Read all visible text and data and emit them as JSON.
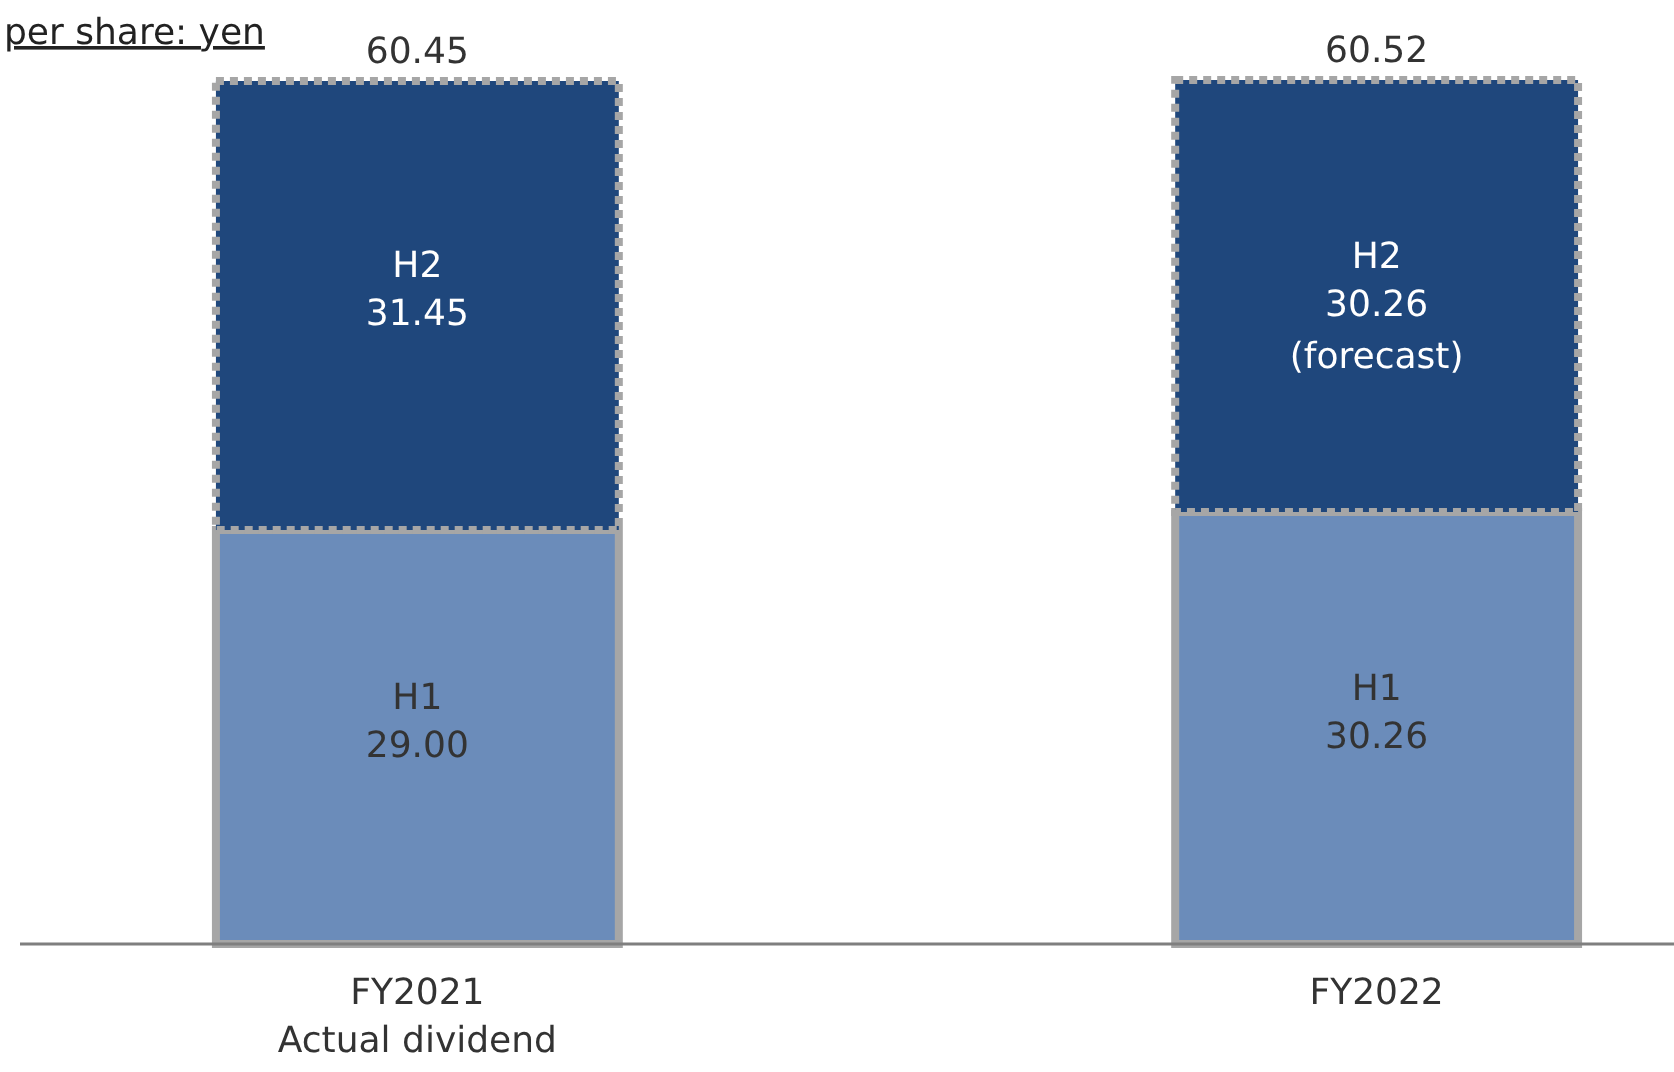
{
  "chart_data": {
    "type": "bar",
    "stacked": true,
    "title": "per share: yen",
    "categories": [
      "FY2021\nActual dividend",
      "FY2022"
    ],
    "series": [
      {
        "name": "H1",
        "color": "#6b8cba",
        "values": [
          29.0,
          30.26
        ],
        "value_labels": [
          "29.00",
          "30.26"
        ]
      },
      {
        "name": "H2",
        "color": "#1f477c",
        "values": [
          31.45,
          30.26
        ],
        "value_labels": [
          "31.45",
          "30.26"
        ]
      }
    ],
    "totals": [
      "60.45",
      "60.52"
    ],
    "annotations": [
      "(forecast)"
    ]
  }
}
